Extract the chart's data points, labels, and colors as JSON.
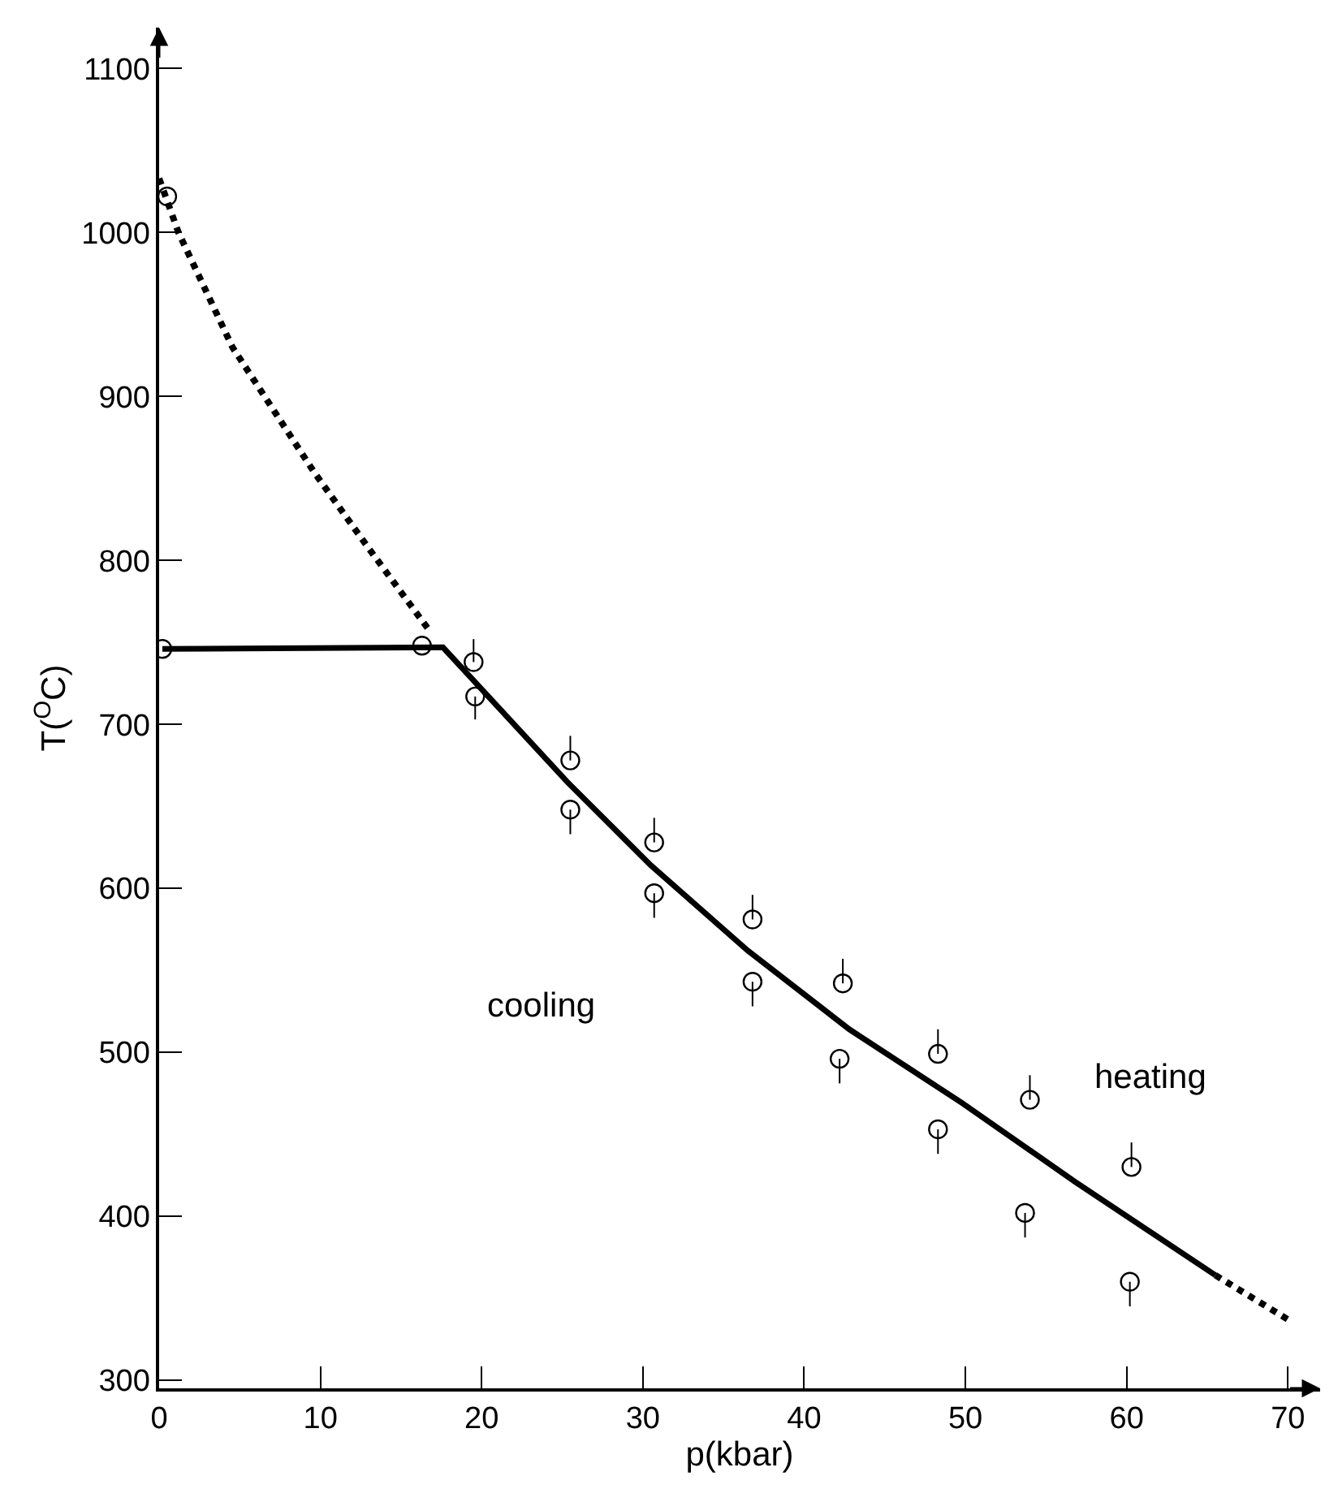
{
  "chart_data": {
    "type": "scatter",
    "xlabel": "p(kbar)",
    "ylabel": "T($^{O}$C)",
    "xlim": [
      0,
      72
    ],
    "ylim": [
      295,
      1125
    ],
    "xticks": [
      0,
      10,
      20,
      30,
      40,
      50,
      60,
      70
    ],
    "yticks": [
      300,
      400,
      500,
      600,
      700,
      800,
      900,
      1000,
      1100
    ],
    "series": [
      {
        "type": "line",
        "color": "#000000",
        "line_style": "dotted",
        "marker": "none",
        "x": [
          0,
          1.2,
          4.55,
          9.6,
          12.95,
          16.7,
          null,
          65.5,
          70.0
        ],
        "values": [
          1033,
          1000,
          930,
          854,
          808,
          758,
          null,
          364,
          337
        ]
      },
      {
        "type": "line",
        "color": "#000000",
        "line_style": "solid",
        "marker": "none",
        "x": [
          0.2,
          17.6,
          25.3,
          30.5,
          36.5,
          42.8,
          49.8,
          56.8,
          65.5
        ],
        "values": [
          746,
          747,
          665,
          614,
          562,
          514,
          469,
          421,
          364
        ]
      },
      {
        "color": "#000000",
        "marker": "circle",
        "x": [
          0.5,
          0.2,
          16.3,
          19.5,
          19.6,
          25.5,
          25.5,
          30.7,
          30.7,
          36.8,
          36.8,
          42.4,
          42.2,
          48.3,
          48.3,
          54.0,
          53.7,
          60.3,
          60.2
        ],
        "values": [
          1022,
          746,
          748,
          738,
          717,
          678,
          648,
          628,
          597,
          581,
          543,
          542,
          496,
          499,
          453,
          471,
          402,
          430,
          360
        ],
        "errors": [
          null,
          null,
          null,
          [
            738,
            752
          ],
          [
            703,
            717
          ],
          [
            678,
            693
          ],
          [
            633,
            648
          ],
          [
            628,
            643
          ],
          [
            582,
            597
          ],
          [
            581,
            596
          ],
          [
            528,
            543
          ],
          [
            542,
            557
          ],
          [
            481,
            496
          ],
          [
            499,
            514
          ],
          [
            438,
            453
          ],
          [
            471,
            486
          ],
          [
            387,
            402
          ],
          [
            430,
            445
          ],
          [
            345,
            360
          ]
        ]
      }
    ],
    "annotations": [
      "cooling",
      "heating"
    ]
  }
}
